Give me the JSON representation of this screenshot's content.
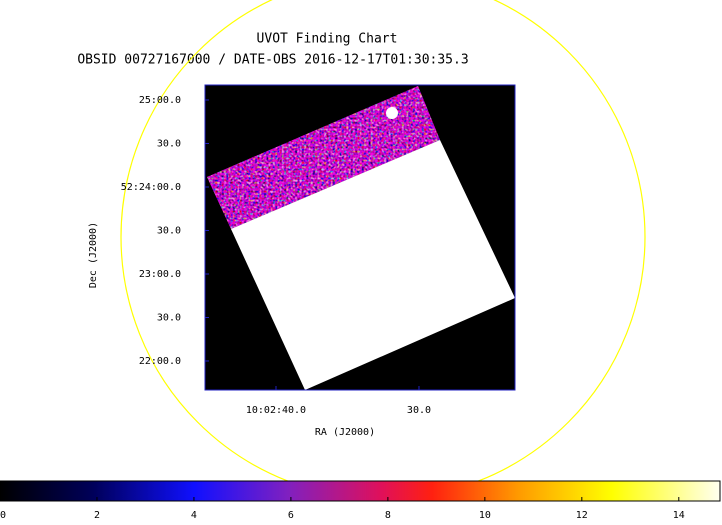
{
  "chart_data": {
    "type": "image",
    "title": "UVOT Finding Chart",
    "subtitle": "OBSID 00727167000 / DATE-OBS 2016-12-17T01:30:35.3",
    "x_label": "RA (J2000)",
    "y_label": "Dec (J2000)",
    "xlim": [
      150.6874,
      150.597
    ],
    "ylim": [
      52.36111,
      52.41954
    ],
    "xticks": [
      {
        "value": 150.6667,
        "label": "10:02:40.0"
      },
      {
        "value": 150.625,
        "label": "30.0"
      }
    ],
    "yticks": [
      {
        "value": 52.41667,
        "label": "25:00.0"
      },
      {
        "value": 52.40833,
        "label": "30.0"
      },
      {
        "value": 52.4,
        "label": "52:24:00.0"
      },
      {
        "value": 52.39167,
        "label": "30.0"
      },
      {
        "value": 52.38333,
        "label": "23:00.0"
      },
      {
        "value": 52.375,
        "label": "30.0"
      },
      {
        "value": 52.36667,
        "label": "22:00.0"
      }
    ],
    "colorbar_lim": [
      0,
      14.85
    ],
    "colorbar_ticks": [
      0,
      2,
      4,
      6,
      8,
      10,
      12,
      14
    ]
  }
}
